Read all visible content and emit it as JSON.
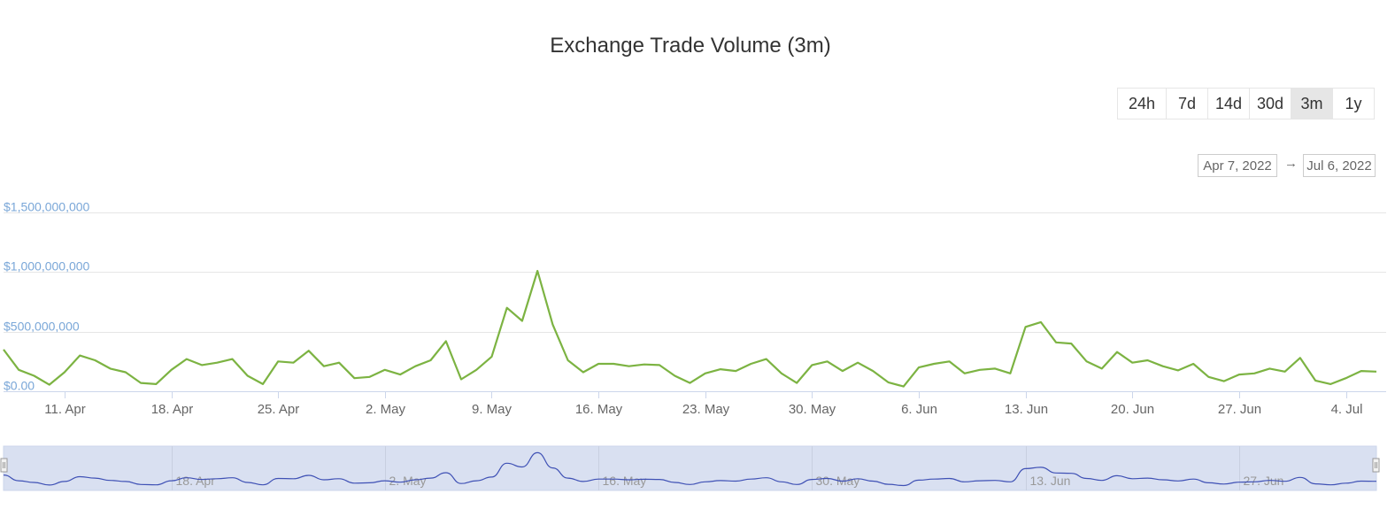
{
  "chart_data": {
    "type": "line",
    "title": "Exchange Trade Volume (3m)",
    "xlabel": "",
    "ylabel": "",
    "x_start": "2022-04-07",
    "x_end": "2022-07-06",
    "ylim": [
      0,
      1500000000
    ],
    "y_ticks": [
      "$0.00",
      "$500,000,000",
      "$1,000,000,000",
      "$1,500,000,000"
    ],
    "x_tick_labels": [
      "11. Apr",
      "18. Apr",
      "25. Apr",
      "2. May",
      "9. May",
      "16. May",
      "23. May",
      "30. May",
      "6. Jun",
      "13. Jun",
      "20. Jun",
      "27. Jun",
      "4. Jul"
    ],
    "navigator_tick_labels": [
      "18. Apr",
      "2. May",
      "16. May",
      "30. May",
      "13. Jun",
      "27. Jun"
    ],
    "grid": true,
    "legend": "none",
    "series": [
      {
        "color": "#7cb342",
        "x": [
          "2022-04-07",
          "2022-04-08",
          "2022-04-09",
          "2022-04-10",
          "2022-04-11",
          "2022-04-12",
          "2022-04-13",
          "2022-04-14",
          "2022-04-15",
          "2022-04-16",
          "2022-04-17",
          "2022-04-18",
          "2022-04-19",
          "2022-04-20",
          "2022-04-21",
          "2022-04-22",
          "2022-04-23",
          "2022-04-24",
          "2022-04-25",
          "2022-04-26",
          "2022-04-27",
          "2022-04-28",
          "2022-04-29",
          "2022-04-30",
          "2022-05-01",
          "2022-05-02",
          "2022-05-03",
          "2022-05-04",
          "2022-05-05",
          "2022-05-06",
          "2022-05-07",
          "2022-05-08",
          "2022-05-09",
          "2022-05-10",
          "2022-05-11",
          "2022-05-12",
          "2022-05-13",
          "2022-05-14",
          "2022-05-15",
          "2022-05-16",
          "2022-05-17",
          "2022-05-18",
          "2022-05-19",
          "2022-05-20",
          "2022-05-21",
          "2022-05-22",
          "2022-05-23",
          "2022-05-24",
          "2022-05-25",
          "2022-05-26",
          "2022-05-27",
          "2022-05-28",
          "2022-05-29",
          "2022-05-30",
          "2022-05-31",
          "2022-06-01",
          "2022-06-02",
          "2022-06-03",
          "2022-06-04",
          "2022-06-05",
          "2022-06-06",
          "2022-06-07",
          "2022-06-08",
          "2022-06-09",
          "2022-06-10",
          "2022-06-11",
          "2022-06-12",
          "2022-06-13",
          "2022-06-14",
          "2022-06-15",
          "2022-06-16",
          "2022-06-17",
          "2022-06-18",
          "2022-06-19",
          "2022-06-20",
          "2022-06-21",
          "2022-06-22",
          "2022-06-23",
          "2022-06-24",
          "2022-06-25",
          "2022-06-26",
          "2022-06-27",
          "2022-06-28",
          "2022-06-29",
          "2022-06-30",
          "2022-07-01",
          "2022-07-02",
          "2022-07-03",
          "2022-07-04",
          "2022-07-05",
          "2022-07-06"
        ],
        "values": [
          350000000,
          180000000,
          130000000,
          55000000,
          160000000,
          300000000,
          260000000,
          190000000,
          160000000,
          70000000,
          60000000,
          180000000,
          270000000,
          220000000,
          240000000,
          270000000,
          130000000,
          60000000,
          250000000,
          240000000,
          340000000,
          210000000,
          240000000,
          110000000,
          120000000,
          180000000,
          140000000,
          210000000,
          260000000,
          420000000,
          100000000,
          180000000,
          290000000,
          700000000,
          590000000,
          1010000000,
          560000000,
          260000000,
          160000000,
          230000000,
          230000000,
          210000000,
          225000000,
          220000000,
          130000000,
          70000000,
          150000000,
          185000000,
          170000000,
          230000000,
          270000000,
          150000000,
          70000000,
          220000000,
          250000000,
          170000000,
          240000000,
          170000000,
          75000000,
          40000000,
          200000000,
          230000000,
          250000000,
          150000000,
          180000000,
          190000000,
          150000000,
          540000000,
          580000000,
          410000000,
          400000000,
          250000000,
          190000000,
          330000000,
          240000000,
          260000000,
          210000000,
          175000000,
          230000000,
          120000000,
          85000000,
          140000000,
          150000000,
          190000000,
          165000000,
          280000000,
          90000000,
          60000000,
          110000000,
          170000000,
          165000000
        ]
      }
    ]
  },
  "range_selector": {
    "buttons": [
      "24h",
      "7d",
      "14d",
      "30d",
      "3m",
      "1y"
    ],
    "active": "3m"
  },
  "date_range": {
    "from": "Apr 7, 2022",
    "arrow": "→",
    "to": "Jul 6, 2022"
  },
  "colors": {
    "series": "#7cb342",
    "navigator_series": "#3f51b5",
    "navigator_mask": "#d9e0f1",
    "grid": "#e6e6e6",
    "y_tick_label": "#7aa7d8",
    "x_tick_label": "#666666"
  }
}
